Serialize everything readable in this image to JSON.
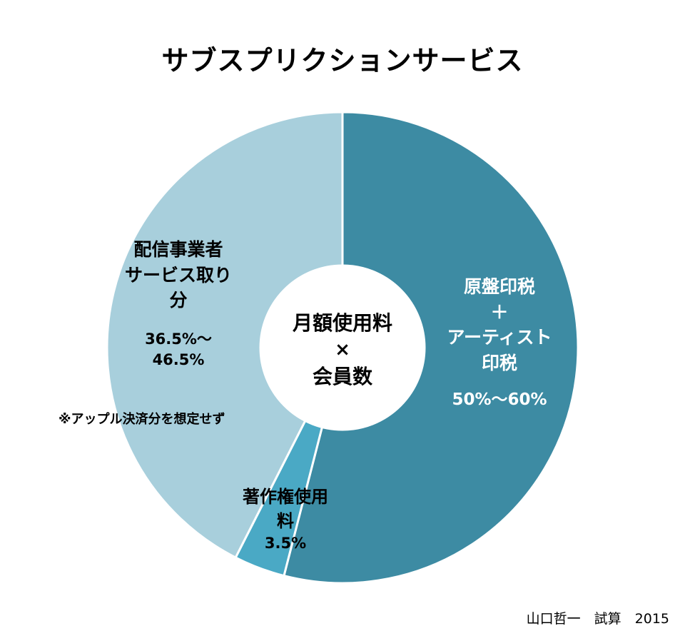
{
  "chart_data": {
    "type": "pie",
    "title": "サブスプリクションサービス",
    "center_label": {
      "line1": "月額使用料",
      "line2": "×",
      "line3": "会員数"
    },
    "slices": [
      {
        "label_lines": [
          "原盤印税",
          "＋",
          "アーティスト",
          "印税"
        ],
        "value_text": "50%～60%",
        "value": 54,
        "color": "#3d8ba3"
      },
      {
        "label_lines": [
          "著作権使用",
          "料"
        ],
        "value_text": "3.5%",
        "value": 3.5,
        "color": "#4aa9c5"
      },
      {
        "label_lines": [
          "配信事業者",
          "サービス取り",
          "分"
        ],
        "value_text_lines": [
          "36.5%～",
          "46.5%"
        ],
        "note": "※アップル決済分を想定せず",
        "value": 42.5,
        "color": "#a8cfdc"
      }
    ]
  },
  "credit": "山口哲一　試算　2015"
}
